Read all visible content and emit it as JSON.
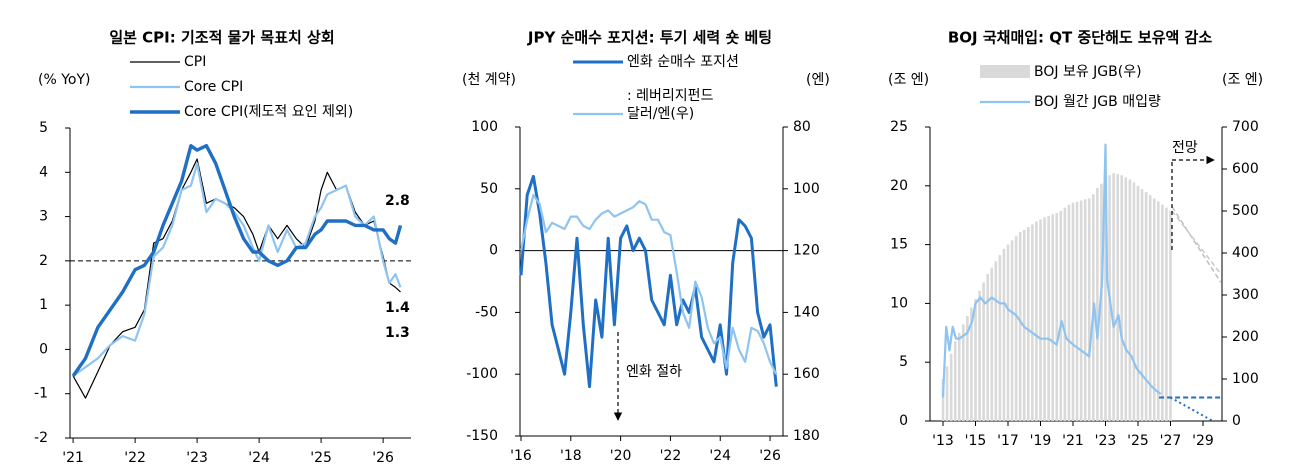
{
  "chart_data": [
    {
      "type": "line",
      "title": "일본 CPI: 기조적 물가 목표치 상회",
      "y_label": "(% YoY)",
      "xlim": [
        2020.95,
        2026.45
      ],
      "xticks": [
        {
          "value": 2021,
          "label": "'21"
        },
        {
          "value": 2022,
          "label": "'22"
        },
        {
          "value": 2023,
          "label": "'23"
        },
        {
          "value": 2024,
          "label": "'24"
        },
        {
          "value": 2025,
          "label": "'25"
        },
        {
          "value": 2026,
          "label": "'26"
        }
      ],
      "ylim": [
        -2,
        5
      ],
      "yticks": [
        -2,
        -1,
        0,
        1,
        2,
        3,
        4,
        5
      ],
      "reference_lines": [
        {
          "value": 2,
          "style": "dashed"
        }
      ],
      "series": [
        {
          "name": "CPI",
          "color": "#000000",
          "line_width": 1.2,
          "x": [
            2021.0,
            2021.2,
            2021.4,
            2021.6,
            2021.8,
            2022.0,
            2022.15,
            2022.3,
            2022.45,
            2022.6,
            2022.75,
            2022.9,
            2023.0,
            2023.15,
            2023.3,
            2023.45,
            2023.6,
            2023.75,
            2023.9,
            2024.0,
            2024.15,
            2024.3,
            2024.45,
            2024.6,
            2024.75,
            2024.9,
            2025.0,
            2025.1,
            2025.25,
            2025.4,
            2025.55,
            2025.7,
            2025.85,
            2026.0,
            2026.1,
            2026.2,
            2026.28
          ],
          "values": [
            -0.6,
            -1.1,
            -0.5,
            0.1,
            0.4,
            0.5,
            0.9,
            2.4,
            2.5,
            2.9,
            3.6,
            4.0,
            4.3,
            3.3,
            3.4,
            3.3,
            3.2,
            3.0,
            2.6,
            2.2,
            2.8,
            2.5,
            2.8,
            2.5,
            2.3,
            2.9,
            3.6,
            4.0,
            3.6,
            3.7,
            3.1,
            2.8,
            2.9,
            2.1,
            1.5,
            1.4,
            1.3
          ]
        },
        {
          "name": "Core CPI",
          "color": "#8fc3f0",
          "line_width": 2.2,
          "x": [
            2021.0,
            2021.2,
            2021.4,
            2021.6,
            2021.8,
            2022.0,
            2022.15,
            2022.3,
            2022.45,
            2022.6,
            2022.75,
            2022.9,
            2023.0,
            2023.15,
            2023.3,
            2023.45,
            2023.6,
            2023.75,
            2023.9,
            2024.0,
            2024.15,
            2024.3,
            2024.45,
            2024.6,
            2024.75,
            2024.9,
            2025.0,
            2025.1,
            2025.25,
            2025.4,
            2025.55,
            2025.7,
            2025.85,
            2026.0,
            2026.1,
            2026.2,
            2026.28
          ],
          "values": [
            -0.6,
            -0.4,
            -0.2,
            0.1,
            0.3,
            0.2,
            0.8,
            2.1,
            2.3,
            2.8,
            3.6,
            3.7,
            4.2,
            3.1,
            3.4,
            3.3,
            3.1,
            2.8,
            2.3,
            2.0,
            2.8,
            2.2,
            2.7,
            2.3,
            2.4,
            3.0,
            3.2,
            3.5,
            3.6,
            3.7,
            3.0,
            2.8,
            3.0,
            2.0,
            1.5,
            1.7,
            1.4
          ]
        },
        {
          "name": "Core CPI(제도적 요인 제외)",
          "color": "#1f6fc5",
          "line_width": 3.4,
          "x": [
            2021.0,
            2021.2,
            2021.4,
            2021.6,
            2021.8,
            2022.0,
            2022.15,
            2022.3,
            2022.45,
            2022.6,
            2022.75,
            2022.9,
            2023.0,
            2023.15,
            2023.3,
            2023.45,
            2023.6,
            2023.75,
            2023.9,
            2024.0,
            2024.15,
            2024.3,
            2024.45,
            2024.6,
            2024.75,
            2024.9,
            2025.0,
            2025.1,
            2025.25,
            2025.4,
            2025.55,
            2025.7,
            2025.85,
            2026.0,
            2026.1,
            2026.2,
            2026.28
          ],
          "values": [
            -0.6,
            -0.2,
            0.5,
            0.9,
            1.3,
            1.8,
            1.9,
            2.2,
            2.8,
            3.3,
            3.8,
            4.6,
            4.5,
            4.6,
            4.2,
            3.6,
            3.0,
            2.5,
            2.2,
            2.2,
            2.0,
            1.9,
            2.0,
            2.3,
            2.3,
            2.6,
            2.7,
            2.9,
            2.9,
            2.9,
            2.8,
            2.8,
            2.7,
            2.7,
            2.5,
            2.4,
            2.8
          ]
        }
      ],
      "annotations": [
        {
          "text": "2.8",
          "color": "#1f6fc5"
        },
        {
          "text": "1.4",
          "color": "#8fc3f0"
        },
        {
          "text": "1.3",
          "color": "#000000"
        }
      ]
    },
    {
      "type": "line",
      "title": "JPY 순매수 포지션: 투기 세력 숏 베팅",
      "y_label": "(천 계약)",
      "y2_label": "(엔)",
      "xlim": [
        2015.96,
        2026.52
      ],
      "xticks": [
        {
          "value": 2016,
          "label": "'16"
        },
        {
          "value": 2018,
          "label": "'18"
        },
        {
          "value": 2020,
          "label": "'20"
        },
        {
          "value": 2022,
          "label": "'22"
        },
        {
          "value": 2024,
          "label": "'24"
        },
        {
          "value": 2026,
          "label": "'26"
        }
      ],
      "ylim": [
        -150,
        100
      ],
      "yticks": [
        -150,
        -100,
        -50,
        0,
        50,
        100
      ],
      "y2lim": [
        80,
        180
      ],
      "y2ticks": [
        80,
        100,
        120,
        140,
        160,
        180
      ],
      "y2_inverted": true,
      "reference_lines": [
        {
          "value": 0,
          "style": "solid"
        }
      ],
      "legend_note": ": 레버리지펀드",
      "series": [
        {
          "name": "엔화 순매수 포지션",
          "color": "#1f6fc5",
          "line_width": 3,
          "x": [
            2016.0,
            2016.25,
            2016.5,
            2016.75,
            2017.0,
            2017.25,
            2017.5,
            2017.75,
            2018.0,
            2018.25,
            2018.5,
            2018.75,
            2019.0,
            2019.25,
            2019.5,
            2019.75,
            2020.0,
            2020.25,
            2020.5,
            2020.75,
            2021.0,
            2021.25,
            2021.5,
            2021.75,
            2022.0,
            2022.25,
            2022.5,
            2022.75,
            2023.0,
            2023.25,
            2023.5,
            2023.75,
            2024.0,
            2024.25,
            2024.5,
            2024.75,
            2025.0,
            2025.25,
            2025.5,
            2025.75,
            2026.0,
            2026.25
          ],
          "values": [
            -20,
            45,
            60,
            30,
            -10,
            -60,
            -80,
            -100,
            -50,
            10,
            -60,
            -110,
            -40,
            -70,
            10,
            -60,
            10,
            20,
            0,
            10,
            0,
            -40,
            -50,
            -60,
            -20,
            -60,
            -40,
            -50,
            -30,
            -70,
            -80,
            -90,
            -60,
            -100,
            -10,
            25,
            20,
            10,
            -50,
            -70,
            -60,
            -110
          ]
        },
        {
          "name": "달러/엔(우)",
          "color": "#8fc3f0",
          "line_width": 2.2,
          "axis": "y2",
          "x": [
            2016.0,
            2016.25,
            2016.5,
            2016.75,
            2017.0,
            2017.25,
            2017.5,
            2017.75,
            2018.0,
            2018.25,
            2018.5,
            2018.75,
            2019.0,
            2019.25,
            2019.5,
            2019.75,
            2020.0,
            2020.25,
            2020.5,
            2020.75,
            2021.0,
            2021.25,
            2021.5,
            2021.75,
            2022.0,
            2022.25,
            2022.5,
            2022.75,
            2023.0,
            2023.25,
            2023.5,
            2023.75,
            2024.0,
            2024.25,
            2024.5,
            2024.75,
            2025.0,
            2025.25,
            2025.5,
            2025.75,
            2026.0,
            2026.25
          ],
          "values": [
            120,
            110,
            102,
            105,
            114,
            111,
            112,
            113,
            109,
            109,
            112,
            113,
            110,
            108,
            107,
            109,
            108,
            107,
            106,
            104,
            105,
            110,
            110,
            114,
            115,
            127,
            140,
            145,
            130,
            135,
            145,
            150,
            148,
            158,
            145,
            152,
            156,
            145,
            146,
            150,
            156,
            160
          ]
        }
      ],
      "annotations": [
        {
          "text": "엔화 절하",
          "color": "#000000"
        }
      ]
    },
    {
      "type": "combo",
      "title": "BOJ 국채매입: QT 중단해도 보유액 감소",
      "y_label": "(조 엔)",
      "y2_label": "(조 엔)",
      "xlim": [
        2012.2,
        2030.17
      ],
      "xticks": [
        {
          "value": 2013,
          "label": "'13"
        },
        {
          "value": 2015,
          "label": "'15"
        },
        {
          "value": 2017,
          "label": "'17"
        },
        {
          "value": 2019,
          "label": "'19"
        },
        {
          "value": 2021,
          "label": "'21"
        },
        {
          "value": 2023,
          "label": "'23"
        },
        {
          "value": 2025,
          "label": "'25"
        },
        {
          "value": 2027,
          "label": "'27"
        },
        {
          "value": 2029,
          "label": "'29"
        }
      ],
      "ylim": [
        0,
        25
      ],
      "yticks": [
        0,
        5,
        10,
        15,
        20,
        25
      ],
      "y2lim": [
        0,
        700
      ],
      "y2ticks": [
        0,
        100,
        200,
        300,
        400,
        500,
        600,
        700
      ],
      "series": [
        {
          "name": "BOJ 보유 JGB(우)",
          "type": "bar",
          "color": "#d9d9d9",
          "axis": "y2",
          "x": [
            2013.0,
            2013.25,
            2013.5,
            2013.75,
            2014.0,
            2014.25,
            2014.5,
            2014.75,
            2015.0,
            2015.25,
            2015.5,
            2015.75,
            2016.0,
            2016.25,
            2016.5,
            2016.75,
            2017.0,
            2017.25,
            2017.5,
            2017.75,
            2018.0,
            2018.25,
            2018.5,
            2018.75,
            2019.0,
            2019.25,
            2019.5,
            2019.75,
            2020.0,
            2020.25,
            2020.5,
            2020.75,
            2021.0,
            2021.25,
            2021.5,
            2021.75,
            2022.0,
            2022.25,
            2022.5,
            2022.75,
            2023.0,
            2023.25,
            2023.5,
            2023.75,
            2024.0,
            2024.25,
            2024.5,
            2024.75,
            2025.0,
            2025.25,
            2025.5,
            2025.75,
            2026.0,
            2026.25,
            2026.5,
            2026.75,
            2027.0
          ],
          "values": [
            100,
            130,
            160,
            190,
            210,
            230,
            250,
            270,
            290,
            310,
            330,
            350,
            365,
            380,
            395,
            410,
            420,
            430,
            440,
            450,
            455,
            462,
            468,
            475,
            480,
            485,
            488,
            492,
            495,
            500,
            508,
            515,
            520,
            522,
            525,
            528,
            530,
            540,
            555,
            565,
            575,
            585,
            590,
            588,
            585,
            580,
            575,
            568,
            560,
            552,
            545,
            538,
            530,
            523,
            515,
            508,
            500
          ]
        },
        {
          "name": "BOJ 월간 JGB 매입량",
          "type": "line",
          "color": "#8fc3f0",
          "line_width": 2.2,
          "x": [
            2013.0,
            2013.2,
            2013.4,
            2013.6,
            2013.8,
            2014.0,
            2014.5,
            2014.8,
            2015.0,
            2015.3,
            2015.6,
            2016.0,
            2016.5,
            2016.8,
            2017.0,
            2017.5,
            2018.0,
            2018.5,
            2019.0,
            2019.5,
            2020.0,
            2020.3,
            2020.6,
            2021.0,
            2021.5,
            2022.0,
            2022.3,
            2022.5,
            2022.8,
            2023.0,
            2023.1,
            2023.3,
            2023.5,
            2023.8,
            2024.0,
            2024.3,
            2024.6,
            2024.9,
            2025.2,
            2025.5,
            2025.8,
            2026.1,
            2026.4
          ],
          "values": [
            2,
            8,
            6,
            8,
            7,
            7,
            7.5,
            8.5,
            10,
            10.5,
            10,
            10.5,
            10,
            10,
            9.5,
            9,
            8,
            7.5,
            7,
            7,
            6.5,
            8.5,
            7,
            6.5,
            6,
            5.5,
            10,
            7,
            12,
            23.5,
            12,
            10,
            8,
            9,
            7,
            6,
            5.5,
            4.5,
            4,
            3.5,
            3,
            2.6,
            2.3
          ]
        }
      ],
      "projections": [
        {
          "axis": "y2",
          "color": "#bfbfbf",
          "style": "dashed",
          "x": [
            2027.1,
            2030.1
          ],
          "values": [
            510,
            330
          ]
        },
        {
          "axis": "y2",
          "color": "#c8c8c8",
          "style": "dashed",
          "x": [
            2027.1,
            2030.1
          ],
          "values": [
            500,
            350
          ]
        },
        {
          "axis": "y",
          "color": "#1f6fc5",
          "style": "dashed",
          "x": [
            2026.3,
            2030.1
          ],
          "values": [
            2.0,
            2.0
          ]
        },
        {
          "axis": "y",
          "color": "#1f6fc5",
          "style": "dotted",
          "x": [
            2027.0,
            2029.6
          ],
          "values": [
            2.0,
            0
          ]
        }
      ],
      "annotations": [
        {
          "text": "전망",
          "color": "#000000"
        }
      ]
    }
  ]
}
